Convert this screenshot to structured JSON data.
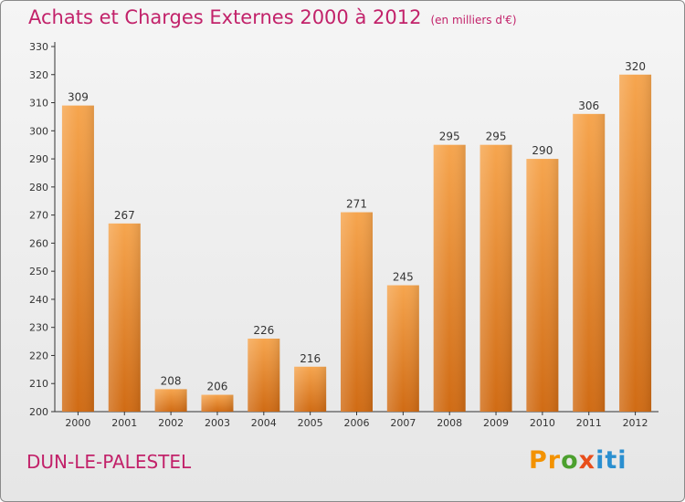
{
  "title": "Achats et Charges Externes 2000 à 2012",
  "unit": "(en milliers d'€)",
  "commune": "DUN-LE-PALESTEL",
  "logo": {
    "p1": "Pr",
    "p2": "o",
    "p3": "x",
    "p4": "iti"
  },
  "colors": {
    "title": "#c2226a",
    "bar_light": "#f6a54e",
    "bar_dark": "#d06b14",
    "axis": "#333333"
  },
  "chart_data": {
    "type": "bar",
    "title": "Achats et Charges Externes 2000 à 2012",
    "xlabel": "",
    "ylabel": "",
    "categories": [
      "2000",
      "2001",
      "2002",
      "2003",
      "2004",
      "2005",
      "2006",
      "2007",
      "2008",
      "2009",
      "2010",
      "2011",
      "2012"
    ],
    "values": [
      309,
      267,
      208,
      206,
      226,
      216,
      271,
      245,
      295,
      295,
      290,
      306,
      320
    ],
    "ylim": [
      200,
      330
    ],
    "yticks": [
      200,
      210,
      220,
      230,
      240,
      250,
      260,
      270,
      280,
      290,
      300,
      310,
      320,
      330
    ],
    "grid": false,
    "data_labels": true
  }
}
